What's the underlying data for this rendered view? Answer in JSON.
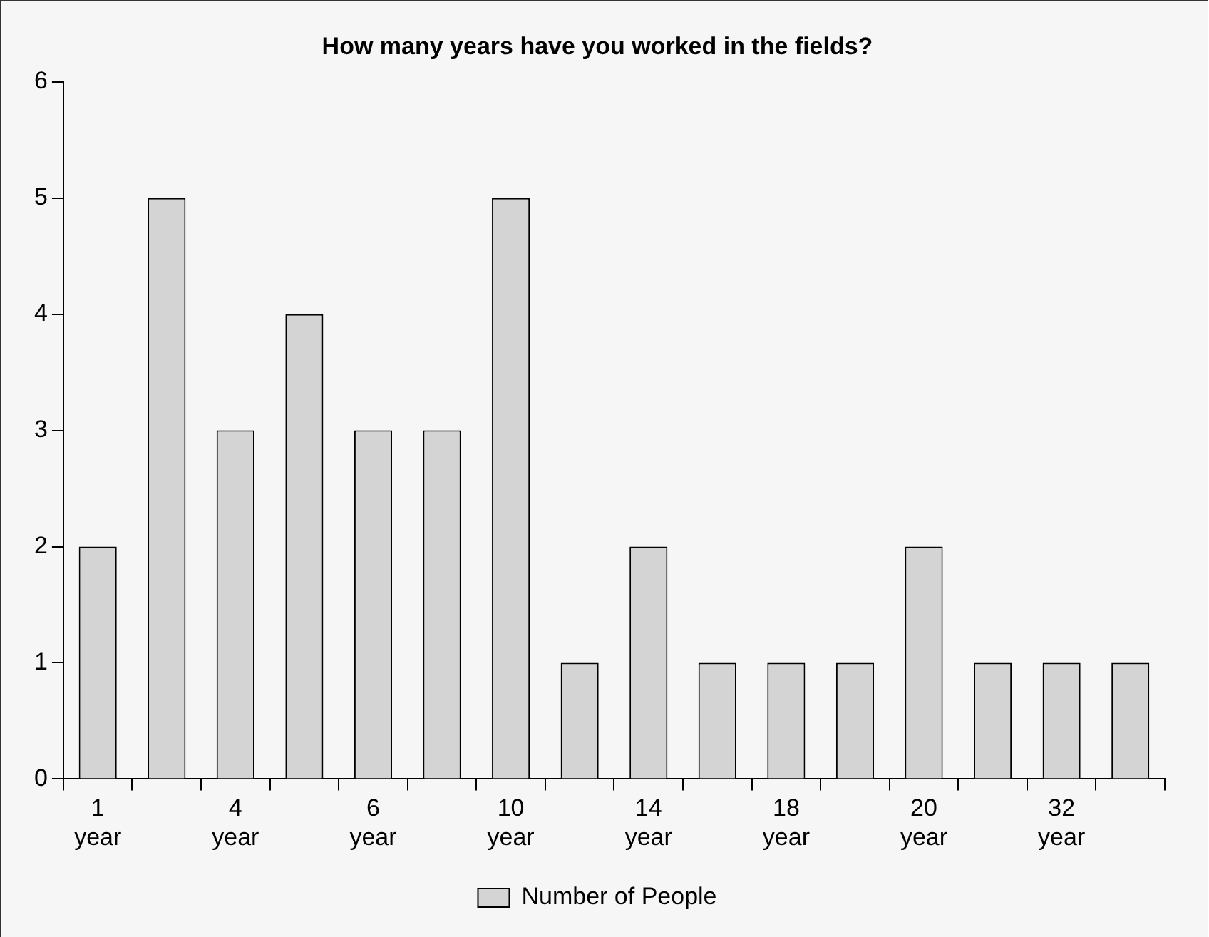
{
  "chart_data": {
    "type": "bar",
    "title": "How many years have you worked in the fields?",
    "categories": [
      "1 year",
      null,
      "4 year",
      null,
      "6 year",
      null,
      "10 year",
      null,
      "14 year",
      null,
      "18 year",
      null,
      "20 year",
      null,
      "32 year",
      null
    ],
    "series": [
      {
        "name": "Number of People",
        "color": "#d4d4d4",
        "values": [
          2,
          5,
          3,
          4,
          3,
          3,
          5,
          1,
          2,
          1,
          1,
          1,
          2,
          1,
          1,
          1
        ]
      }
    ],
    "ylim": [
      0,
      6
    ],
    "yticks": [
      0,
      1,
      2,
      3,
      4,
      5,
      6
    ],
    "grid": false,
    "legend": "bottom"
  }
}
